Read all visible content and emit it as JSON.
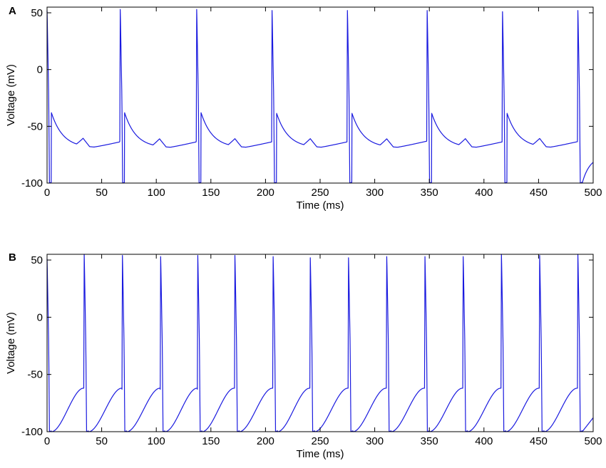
{
  "colors": {
    "trace": "#1a1adf",
    "axes": "#000000",
    "background": "#ffffff"
  },
  "chart_data": [
    {
      "type": "line",
      "panel_label": "A",
      "xlabel": "Time (ms)",
      "ylabel": "Voltage (mV)",
      "xlim": [
        0,
        500
      ],
      "ylim": [
        -100,
        55
      ],
      "xticks": [
        0,
        50,
        100,
        150,
        200,
        250,
        300,
        350,
        400,
        450,
        500
      ],
      "yticks": [
        -100,
        -50,
        0,
        50
      ],
      "grid": false,
      "series": [
        {
          "spike_times": [
            0,
            67,
            137,
            206,
            275,
            348,
            417,
            486
          ],
          "spike_peaks": [
            52,
            53,
            53,
            52,
            52,
            52,
            51,
            52
          ],
          "bump_times": [
            33,
            103,
            172,
            241,
            311,
            383,
            451
          ],
          "trough_value": -100,
          "end_value": -76
        }
      ]
    },
    {
      "type": "line",
      "panel_label": "B",
      "xlabel": "Time (ms)",
      "ylabel": "Voltage (mV)",
      "xlim": [
        0,
        500
      ],
      "ylim": [
        -100,
        55
      ],
      "xticks": [
        0,
        50,
        100,
        150,
        200,
        250,
        300,
        350,
        400,
        450,
        500
      ],
      "yticks": [
        -100,
        -50,
        0,
        50
      ],
      "grid": false,
      "series": [
        {
          "spike_times": [
            0,
            34,
            69,
            104,
            138,
            172,
            207,
            241,
            276,
            311,
            346,
            381,
            416,
            451,
            486
          ],
          "spike_peaks": [
            51,
            55,
            54,
            53,
            54,
            54,
            53,
            52,
            52,
            53,
            53,
            53,
            55,
            54,
            55
          ],
          "bump_times": [],
          "trough_value": -100,
          "end_value": -83
        }
      ]
    }
  ]
}
